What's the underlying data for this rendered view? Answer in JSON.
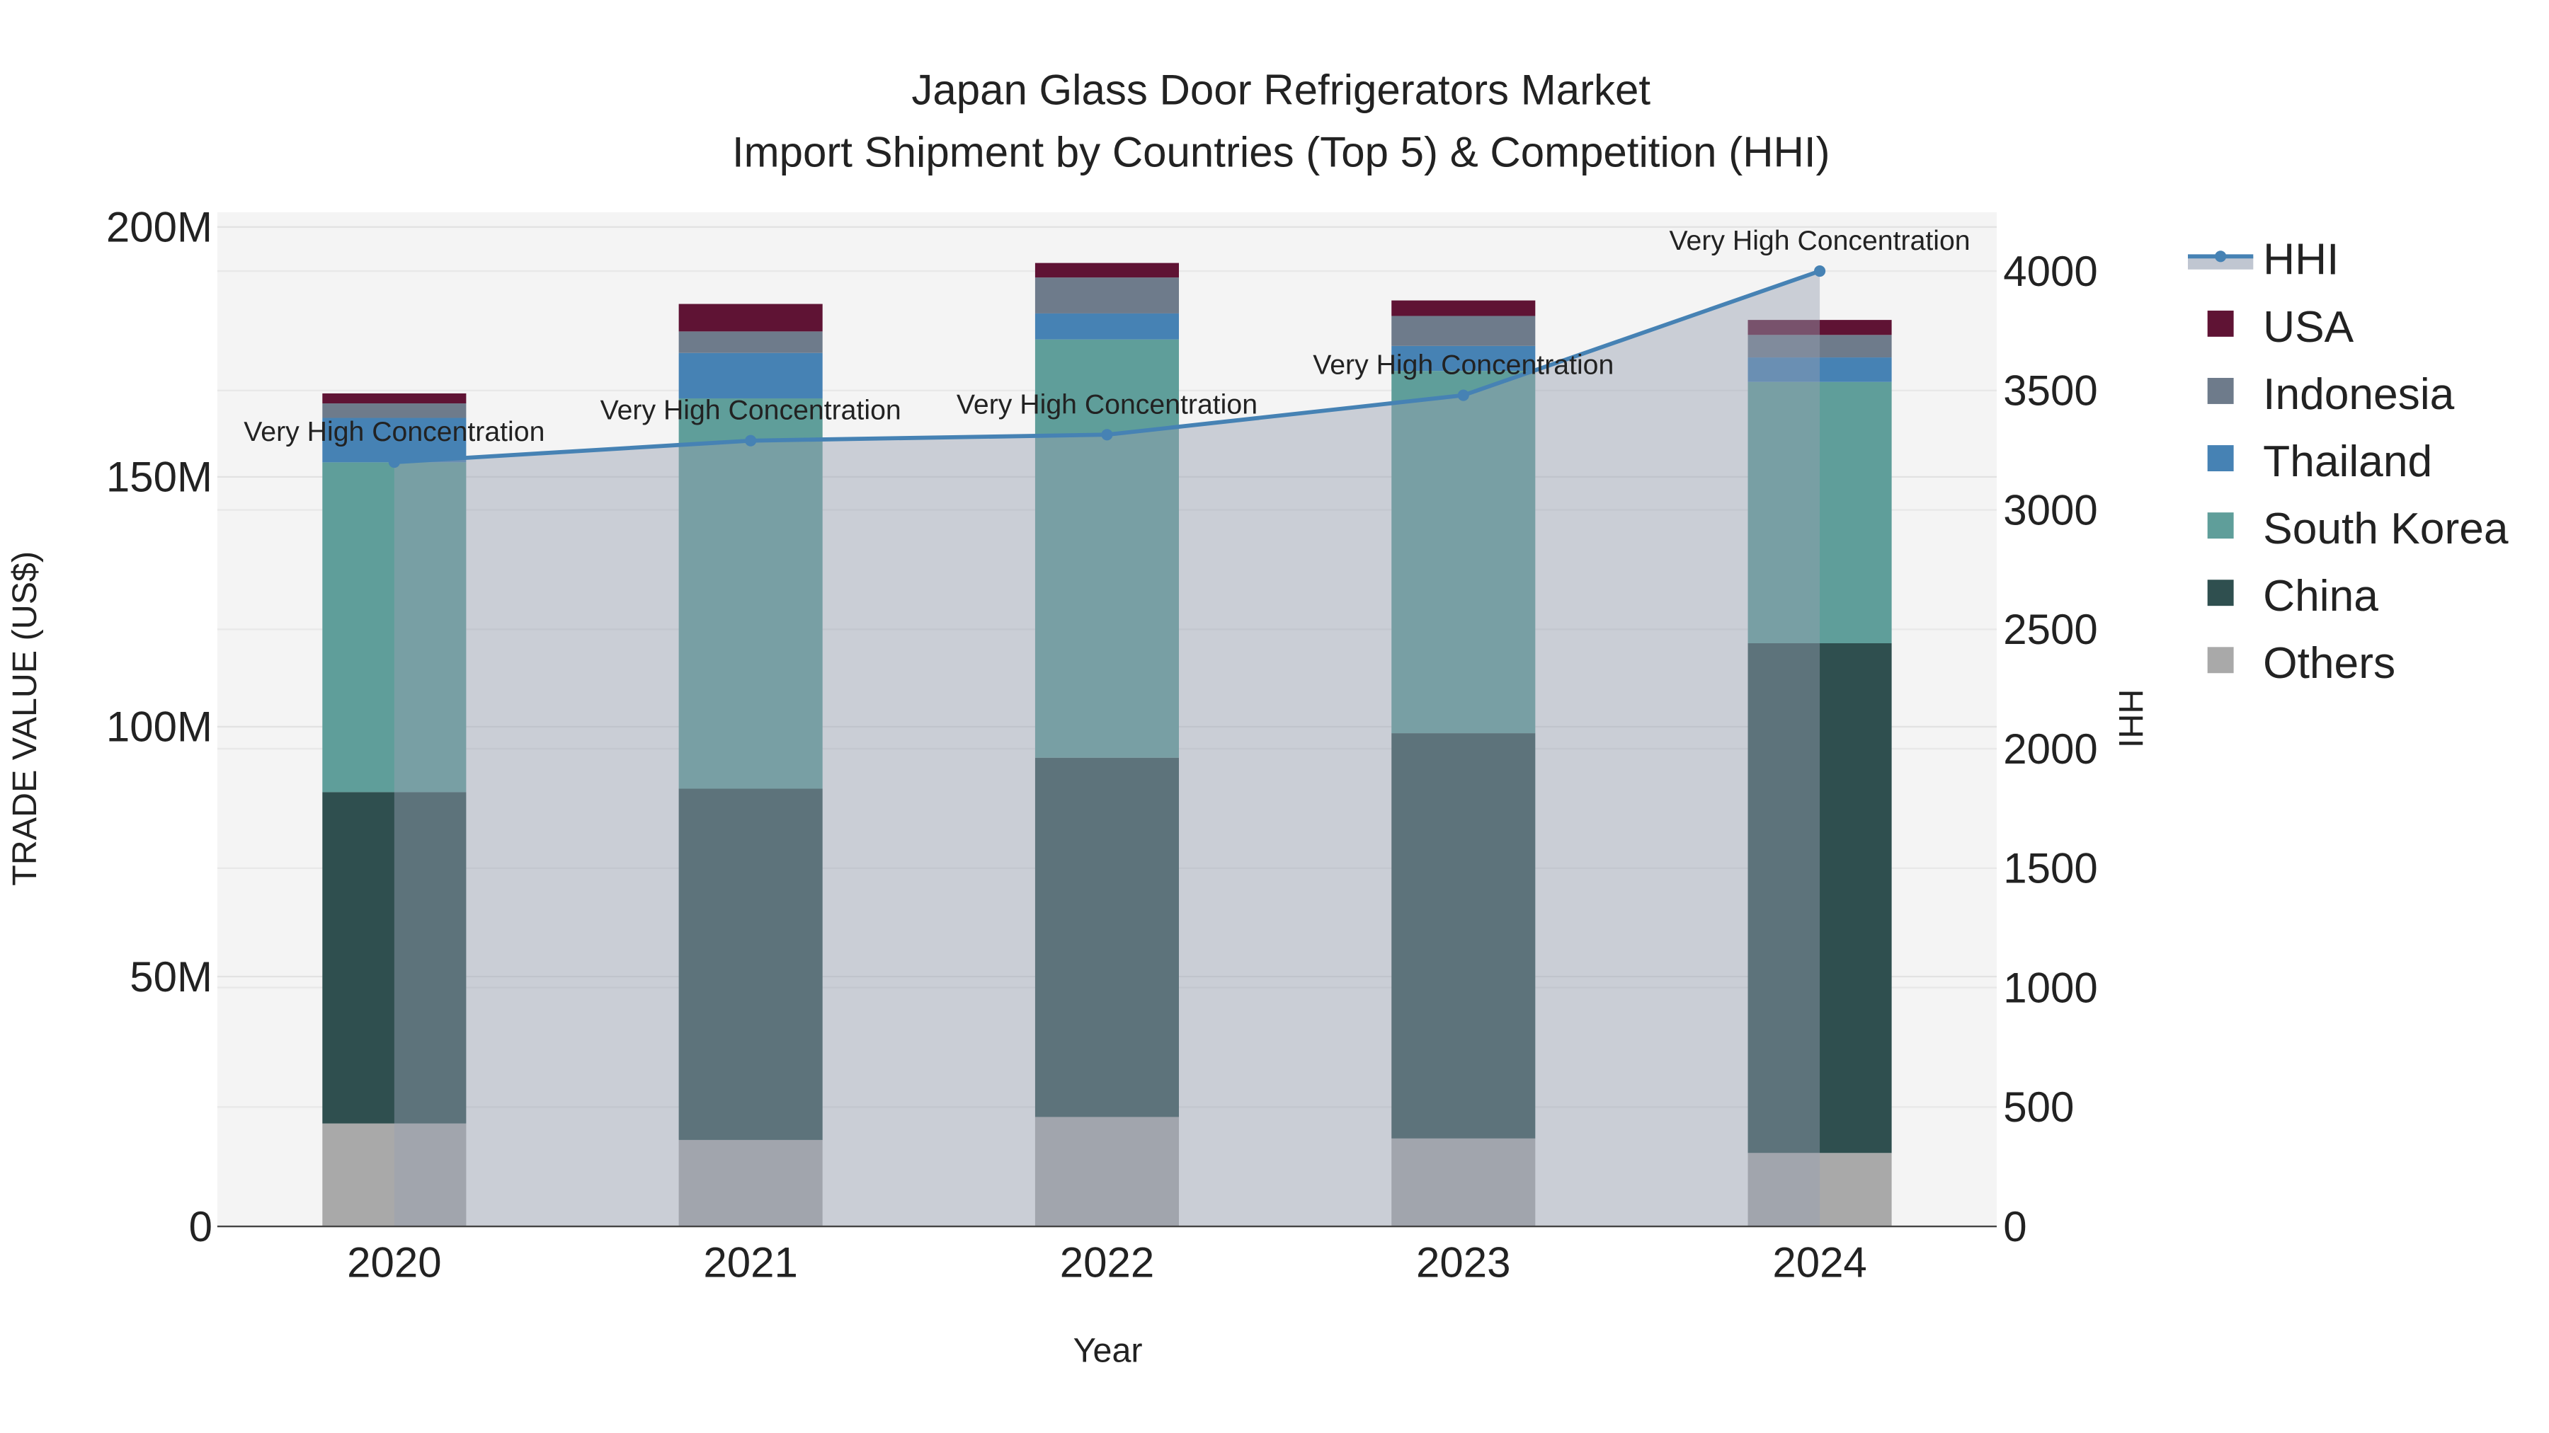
{
  "chart_data": {
    "type": "bar",
    "title": "Japan Glass Door Refrigerators Market",
    "subtitle": "Import Shipment by Countries (Top 5) & Competition (HHI)",
    "xlabel": "Year",
    "ylabel": "TRADE VALUE (US$)",
    "y2label": "HHI",
    "categories": [
      "2020",
      "2021",
      "2022",
      "2023",
      "2024"
    ],
    "ylim": [
      0,
      200
    ],
    "y_unit": "M",
    "y_ticks": [
      "0",
      "50M",
      "100M",
      "150M",
      "200M"
    ],
    "y2lim": [
      0,
      4000
    ],
    "y2_ticks": [
      "0",
      "500",
      "1000",
      "1500",
      "2000",
      "2500",
      "3000",
      "3500",
      "4000"
    ],
    "series": [
      {
        "name": "Others",
        "color": "#a9a9a9",
        "values": [
          20.6,
          17.3,
          21.9,
          17.6,
          14.7
        ]
      },
      {
        "name": "China",
        "color": "#2f4f4f",
        "values": [
          66.3,
          70.3,
          71.9,
          81.1,
          102.0
        ]
      },
      {
        "name": "South Korea",
        "color": "#5f9e9a",
        "values": [
          66.0,
          78.1,
          83.7,
          72.5,
          52.3
        ]
      },
      {
        "name": "Thailand",
        "color": "#4682b4",
        "values": [
          8.9,
          9.1,
          5.2,
          5.0,
          4.9
        ]
      },
      {
        "name": "Indonesia",
        "color": "#6e7b8b",
        "values": [
          2.9,
          4.3,
          7.2,
          6.0,
          4.5
        ]
      },
      {
        "name": "USA",
        "color": "#5f1334",
        "values": [
          2.0,
          5.5,
          2.9,
          3.1,
          3.0
        ]
      }
    ],
    "hhi": {
      "name": "HHI",
      "color": "#4682b4",
      "values": [
        3200,
        3290,
        3315,
        3480,
        4000
      ],
      "labels": [
        "Very High Concentration",
        "Very High Concentration",
        "Very High Concentration",
        "Very High Concentration",
        "Very High Concentration"
      ]
    },
    "legend": [
      "HHI",
      "USA",
      "Indonesia",
      "Thailand",
      "South Korea",
      "China",
      "Others"
    ],
    "legend_placement": "right",
    "grid": true
  }
}
